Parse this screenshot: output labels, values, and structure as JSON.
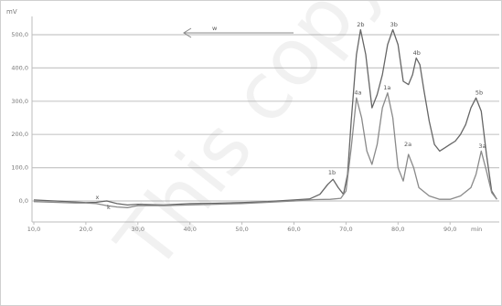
{
  "chart_data": {
    "type": "line",
    "ylabel": "mV",
    "xunit": "min",
    "xlim": [
      10,
      100
    ],
    "ylim": [
      0,
      550
    ],
    "xticks": [
      "10,0",
      "20,0",
      "30,0",
      "40,0",
      "50,0",
      "60,0",
      "70,0",
      "80,0",
      "90,0"
    ],
    "yticks": [
      "0,0",
      "100,0",
      "200,0",
      "300,0",
      "400,0",
      "500,0"
    ],
    "grid": true,
    "arrow_label": "w",
    "series": [
      {
        "name": "",
        "color": "#666666",
        "x": [
          10,
          14,
          18,
          20,
          22,
          24,
          26,
          28,
          30,
          35,
          40,
          45,
          50,
          55,
          60,
          63,
          65,
          66.5,
          67.5,
          68.5,
          69.5,
          70.3,
          71,
          72,
          72.8,
          73.8,
          75,
          76,
          77,
          78,
          79,
          80,
          81,
          82,
          82.8,
          83.5,
          84.2,
          85,
          86,
          87,
          88,
          89,
          90,
          91,
          92,
          93,
          94,
          95,
          96,
          97,
          98,
          99
        ],
        "y": [
          3,
          0,
          -3,
          -5,
          -4,
          0,
          -8,
          -12,
          -10,
          -12,
          -8,
          -7,
          -5,
          -2,
          3,
          6,
          20,
          50,
          65,
          40,
          20,
          80,
          240,
          440,
          515,
          440,
          280,
          320,
          380,
          470,
          515,
          470,
          360,
          350,
          380,
          430,
          410,
          330,
          240,
          170,
          150,
          160,
          170,
          180,
          200,
          230,
          280,
          310,
          270,
          140,
          30,
          5
        ]
      },
      {
        "name": "",
        "color": "#8a8a8a",
        "x": [
          10,
          14,
          18,
          20,
          22,
          24,
          26,
          28,
          30,
          35,
          40,
          45,
          50,
          55,
          60,
          64,
          67,
          69,
          70,
          71,
          72,
          73,
          74,
          75,
          76,
          77,
          78,
          79,
          80,
          81,
          82,
          83,
          84,
          86,
          88,
          90,
          92,
          94,
          95,
          96,
          97,
          98,
          99
        ],
        "y": [
          -2,
          -4,
          -6,
          -6,
          -8,
          -14,
          -18,
          -20,
          -14,
          -14,
          -12,
          -10,
          -8,
          -4,
          0,
          4,
          5,
          8,
          30,
          160,
          310,
          250,
          150,
          110,
          170,
          280,
          325,
          250,
          100,
          60,
          140,
          100,
          40,
          15,
          5,
          5,
          15,
          40,
          80,
          150,
          90,
          25,
          5
        ]
      }
    ],
    "peak_labels": [
      {
        "text": "1b",
        "x": 67.3,
        "y": 80
      },
      {
        "text": "2b",
        "x": 72.8,
        "y": 525
      },
      {
        "text": "3b",
        "x": 79.2,
        "y": 525
      },
      {
        "text": "4b",
        "x": 83.6,
        "y": 440
      },
      {
        "text": "5b",
        "x": 95.6,
        "y": 320
      },
      {
        "text": "4a",
        "x": 72.3,
        "y": 320
      },
      {
        "text": "1a",
        "x": 77.9,
        "y": 335
      },
      {
        "text": "2a",
        "x": 81.9,
        "y": 165
      },
      {
        "text": "3a",
        "x": 96.2,
        "y": 160
      },
      {
        "text": "x",
        "x": 22.2,
        "y": 5
      },
      {
        "text": "k",
        "x": 24.4,
        "y": -25
      }
    ]
  },
  "watermark": "This copy is"
}
